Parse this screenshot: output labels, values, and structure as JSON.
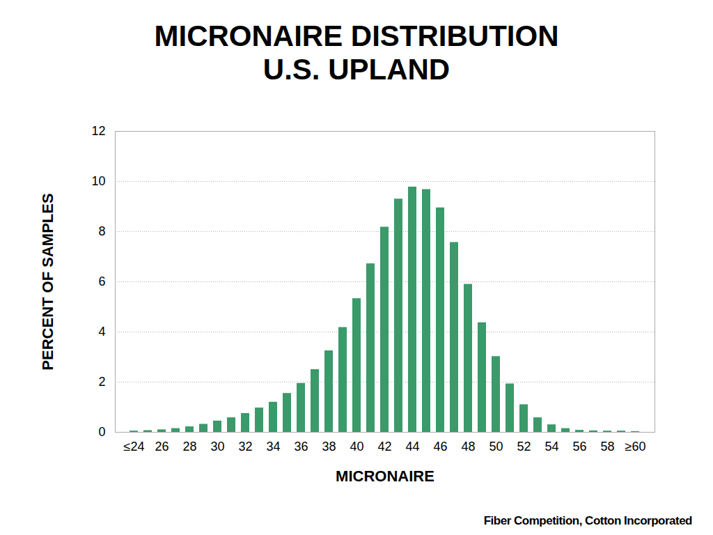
{
  "chart_data": {
    "type": "bar",
    "title": "MICRONAIRE DISTRIBUTION\nU.S. UPLAND",
    "caption": "Fiber Competition, Cotton Incorporated",
    "x_label": "MICRONAIRE",
    "y_label": "PERCENT OF SAMPLES",
    "categories": [
      "≤24",
      null,
      "26",
      null,
      "28",
      null,
      "30",
      null,
      "32",
      null,
      "34",
      null,
      "36",
      null,
      "38",
      null,
      "40",
      null,
      "42",
      null,
      "44",
      null,
      "46",
      null,
      "48",
      null,
      "50",
      null,
      "52",
      null,
      "54",
      null,
      "56",
      null,
      "58",
      null,
      "≥60"
    ],
    "values": [
      0.05,
      0.07,
      0.1,
      0.15,
      0.22,
      0.32,
      0.45,
      0.58,
      0.75,
      0.97,
      1.2,
      1.55,
      1.95,
      2.5,
      3.25,
      4.18,
      5.33,
      6.72,
      8.18,
      9.3,
      9.78,
      9.68,
      8.95,
      7.57,
      5.9,
      4.37,
      3.02,
      1.93,
      1.1,
      0.58,
      0.3,
      0.15,
      0.08,
      0.06,
      0.05,
      0.05,
      0.03
    ],
    "color": "#3a9a6a",
    "ylim": [
      0,
      12
    ],
    "yticks": [
      0,
      2,
      4,
      6,
      8,
      10,
      12
    ],
    "grid": true
  }
}
